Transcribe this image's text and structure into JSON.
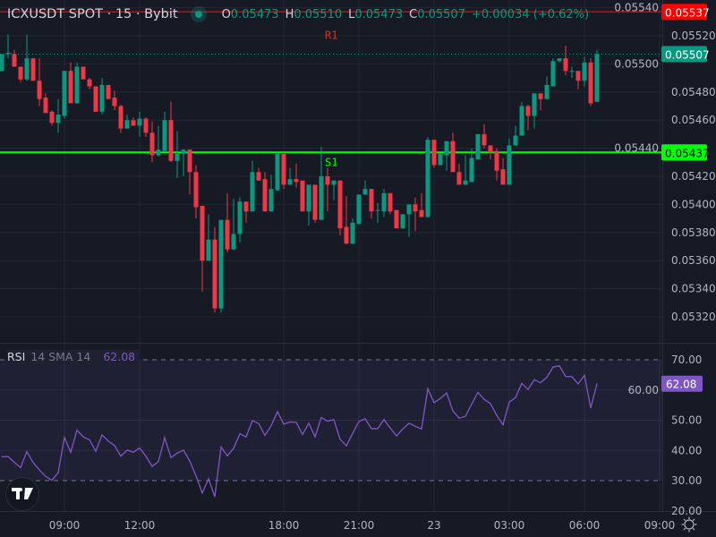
{
  "header": {
    "symbol": "ICXUSDT SPOT · 15 · Bybit",
    "status_dot_color": "#089981",
    "open_label": "O",
    "open": "0.05473",
    "high_label": "H",
    "high": "0.05510",
    "low_label": "L",
    "low": "0.05473",
    "close_label": "C",
    "close": "0.05507",
    "change": "+0.00034 (+0.62%)"
  },
  "indicator": {
    "name": "RSI",
    "params": "14 SMA 14",
    "value": "62.08",
    "color": "#7e57c2"
  },
  "colors": {
    "background": "#161a25",
    "up": "#089981",
    "down": "#f23645",
    "grid": "#232734",
    "resistance": "#ff0000",
    "support": "#00ff00"
  },
  "icons": {
    "logo": "tradingview-logo-icon",
    "settings": "gear-icon"
  },
  "chart_data": [
    {
      "type": "candlestick",
      "interval": "15",
      "price_ticks": [
        "0.05540",
        "0.05520",
        "0.05500",
        "0.05480",
        "0.05460",
        "0.05440",
        "0.05420",
        "0.05400",
        "0.05380",
        "0.05360",
        "0.05340",
        "0.05320"
      ],
      "time_ticks": [
        {
          "label": "09:00",
          "bar": 10
        },
        {
          "label": "12:00",
          "bar": 22
        },
        {
          "label": "18:00",
          "bar": 45
        },
        {
          "label": "21:00",
          "bar": 57
        },
        {
          "label": "23",
          "bar": 69
        },
        {
          "label": "03:00",
          "bar": 81
        },
        {
          "label": "06:00",
          "bar": 93
        },
        {
          "label": "09:00",
          "bar": 105
        }
      ],
      "last_price": {
        "value": "0.05507",
        "color": "#089981"
      },
      "levels": [
        {
          "name": "R1",
          "value": "0.05537",
          "color": "#ff0000"
        },
        {
          "name": "S1",
          "value": "0.05437",
          "color": "#00ff00"
        }
      ],
      "candles_ohlc": [
        [
          0.05495,
          0.05507,
          0.05495,
          0.05507
        ],
        [
          0.05507,
          0.05521,
          0.05504,
          0.05508
        ],
        [
          0.05507,
          0.0551,
          0.05498,
          0.05498
        ],
        [
          0.05498,
          0.05498,
          0.05487,
          0.05489
        ],
        [
          0.05489,
          0.05521,
          0.05488,
          0.05504
        ],
        [
          0.05504,
          0.05504,
          0.05488,
          0.05488
        ],
        [
          0.05488,
          0.05504,
          0.0547,
          0.05475
        ],
        [
          0.05476,
          0.05479,
          0.05465,
          0.05465
        ],
        [
          0.05466,
          0.05467,
          0.05456,
          0.05458
        ],
        [
          0.05458,
          0.05475,
          0.05451,
          0.05464
        ],
        [
          0.05463,
          0.05495,
          0.05461,
          0.05495
        ],
        [
          0.05495,
          0.05501,
          0.05472,
          0.05472
        ],
        [
          0.05472,
          0.05501,
          0.05472,
          0.05498
        ],
        [
          0.05498,
          0.05498,
          0.05489,
          0.05489
        ],
        [
          0.05489,
          0.0549,
          0.05482,
          0.05484
        ],
        [
          0.05484,
          0.05484,
          0.05466,
          0.05466
        ],
        [
          0.05466,
          0.0549,
          0.05464,
          0.05485
        ],
        [
          0.05485,
          0.05485,
          0.05475,
          0.05475
        ],
        [
          0.05476,
          0.05481,
          0.05467,
          0.0547
        ],
        [
          0.0547,
          0.05471,
          0.05451,
          0.05454
        ],
        [
          0.05454,
          0.05464,
          0.05454,
          0.0546
        ],
        [
          0.0546,
          0.05462,
          0.05456,
          0.05456
        ],
        [
          0.05456,
          0.05466,
          0.05448,
          0.05461
        ],
        [
          0.05461,
          0.05462,
          0.05448,
          0.05451
        ],
        [
          0.05451,
          0.05459,
          0.0543,
          0.05435
        ],
        [
          0.05435,
          0.05456,
          0.05434,
          0.05439
        ],
        [
          0.05438,
          0.05466,
          0.05438,
          0.0546
        ],
        [
          0.0546,
          0.05473,
          0.0543,
          0.05431
        ],
        [
          0.05431,
          0.05452,
          0.05419,
          0.05436
        ],
        [
          0.05436,
          0.05439,
          0.0542,
          0.05439
        ],
        [
          0.05439,
          0.05439,
          0.05407,
          0.05423
        ],
        [
          0.05423,
          0.05428,
          0.0539,
          0.05398
        ],
        [
          0.05399,
          0.05399,
          0.05338,
          0.0536
        ],
        [
          0.0536,
          0.05393,
          0.0536,
          0.05375
        ],
        [
          0.05375,
          0.05384,
          0.05323,
          0.05326
        ],
        [
          0.05326,
          0.05389,
          0.05323,
          0.05389
        ],
        [
          0.05389,
          0.05408,
          0.05366,
          0.05368
        ],
        [
          0.05368,
          0.05404,
          0.05368,
          0.05379
        ],
        [
          0.05379,
          0.05405,
          0.05373,
          0.05402
        ],
        [
          0.05402,
          0.05402,
          0.05387,
          0.05395
        ],
        [
          0.05395,
          0.05431,
          0.05395,
          0.05423
        ],
        [
          0.05423,
          0.05426,
          0.05417,
          0.05417
        ],
        [
          0.05418,
          0.05423,
          0.05395,
          0.05395
        ],
        [
          0.05395,
          0.05421,
          0.05395,
          0.05411
        ],
        [
          0.0541,
          0.05436,
          0.0541,
          0.05436
        ],
        [
          0.05436,
          0.05436,
          0.05411,
          0.05414
        ],
        [
          0.05414,
          0.05426,
          0.05414,
          0.05418
        ],
        [
          0.05418,
          0.05429,
          0.05412,
          0.05416
        ],
        [
          0.05417,
          0.05417,
          0.05395,
          0.05395
        ],
        [
          0.05395,
          0.05414,
          0.05385,
          0.05414
        ],
        [
          0.05414,
          0.05414,
          0.05387,
          0.05389
        ],
        [
          0.05389,
          0.05441,
          0.05389,
          0.0542
        ],
        [
          0.0542,
          0.05426,
          0.05395,
          0.05414
        ],
        [
          0.05414,
          0.05417,
          0.05403,
          0.05417
        ],
        [
          0.05417,
          0.05417,
          0.05378,
          0.05383
        ],
        [
          0.05384,
          0.05406,
          0.05372,
          0.05372
        ],
        [
          0.05372,
          0.0539,
          0.05372,
          0.05387
        ],
        [
          0.05386,
          0.05407,
          0.05386,
          0.05407
        ],
        [
          0.05407,
          0.05417,
          0.05407,
          0.05411
        ],
        [
          0.05411,
          0.05411,
          0.0539,
          0.05395
        ],
        [
          0.05396,
          0.05401,
          0.05387,
          0.05396
        ],
        [
          0.05395,
          0.05411,
          0.05391,
          0.05408
        ],
        [
          0.05408,
          0.05408,
          0.05393,
          0.05395
        ],
        [
          0.05396,
          0.05396,
          0.05383,
          0.05383
        ],
        [
          0.05383,
          0.05393,
          0.05383,
          0.05393
        ],
        [
          0.05393,
          0.054,
          0.05377,
          0.054
        ],
        [
          0.054,
          0.05405,
          0.05381,
          0.05395
        ],
        [
          0.05396,
          0.05408,
          0.05391,
          0.05391
        ],
        [
          0.05391,
          0.05448,
          0.05391,
          0.05446
        ],
        [
          0.05446,
          0.05446,
          0.05426,
          0.05428
        ],
        [
          0.05428,
          0.05436,
          0.05428,
          0.05436
        ],
        [
          0.05435,
          0.05445,
          0.05424,
          0.05445
        ],
        [
          0.05445,
          0.05451,
          0.05423,
          0.05423
        ],
        [
          0.05423,
          0.05429,
          0.05414,
          0.05414
        ],
        [
          0.05414,
          0.05435,
          0.05414,
          0.05417
        ],
        [
          0.05416,
          0.0544,
          0.05416,
          0.05433
        ],
        [
          0.05432,
          0.0545,
          0.05432,
          0.0545
        ],
        [
          0.0545,
          0.05457,
          0.0544,
          0.05442
        ],
        [
          0.05442,
          0.05442,
          0.05432,
          0.05437
        ],
        [
          0.05438,
          0.0544,
          0.05417,
          0.05424
        ],
        [
          0.05425,
          0.05433,
          0.05414,
          0.05414
        ],
        [
          0.05414,
          0.05447,
          0.05414,
          0.05442
        ],
        [
          0.05442,
          0.05456,
          0.05442,
          0.05449
        ],
        [
          0.05449,
          0.05473,
          0.05449,
          0.0547
        ],
        [
          0.0547,
          0.05471,
          0.05453,
          0.05463
        ],
        [
          0.05463,
          0.05479,
          0.05454,
          0.05479
        ],
        [
          0.05479,
          0.05479,
          0.05467,
          0.05475
        ],
        [
          0.05475,
          0.05491,
          0.05475,
          0.05485
        ],
        [
          0.05484,
          0.05504,
          0.05484,
          0.05502
        ],
        [
          0.05502,
          0.05504,
          0.05501,
          0.05504
        ],
        [
          0.05504,
          0.05513,
          0.05492,
          0.05495
        ],
        [
          0.05495,
          0.05498,
          0.0549,
          0.05495
        ],
        [
          0.05495,
          0.05495,
          0.05482,
          0.05488
        ],
        [
          0.05488,
          0.05505,
          0.05484,
          0.05501
        ],
        [
          0.05501,
          0.05504,
          0.0547,
          0.05472
        ],
        [
          0.05473,
          0.0551,
          0.05473,
          0.05507
        ]
      ]
    },
    {
      "type": "line",
      "name": "RSI",
      "ylim": [
        20,
        80
      ],
      "y_ticks": [
        "70.00",
        "60.00",
        "50.00",
        "40.00",
        "30.00",
        "20.00"
      ],
      "bands": [
        30,
        70
      ],
      "values": [
        37.9,
        38,
        36,
        34.3,
        39.6,
        36,
        33.5,
        31.4,
        30.1,
        32.6,
        44.3,
        39.4,
        46.7,
        44.5,
        43.5,
        39.7,
        45.1,
        43.1,
        41.6,
        38.1,
        40.1,
        39.4,
        40.8,
        38.1,
        34.7,
        36.3,
        44.2,
        37.6,
        39.1,
        40.1,
        36.5,
        31.6,
        25.9,
        30.6,
        24.7,
        41.1,
        38.2,
        40.7,
        45.5,
        44.5,
        49.9,
        48.9,
        45,
        48.2,
        52.8,
        48.7,
        49.4,
        49.3,
        45.3,
        49,
        44.5,
        50.9,
        49.7,
        50.2,
        43.7,
        41.5,
        45.6,
        49.6,
        50.5,
        47.2,
        47.2,
        50.2,
        47.4,
        44.8,
        47.1,
        49,
        48,
        47.1,
        60.4,
        55.8,
        57.2,
        59,
        53.1,
        50.7,
        51.3,
        55.3,
        59.2,
        56.9,
        55.5,
        51.6,
        48.5,
        56,
        57.5,
        62.2,
        60.2,
        63.4,
        62.4,
        64.2,
        67.6,
        68,
        64.5,
        64.4,
        62,
        64.9,
        54.1,
        62.08
      ]
    }
  ]
}
